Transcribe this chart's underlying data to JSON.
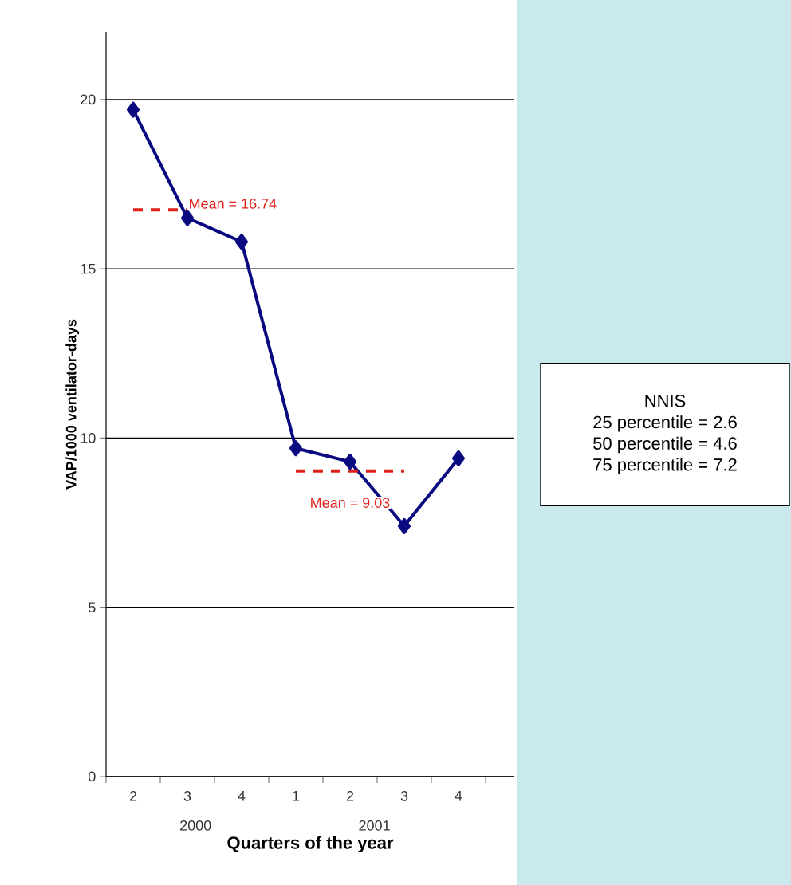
{
  "chart_data": {
    "type": "line",
    "xlabel": "Quarters of the year",
    "ylabel": "VAP/1000 ventilator-days",
    "categories": [
      "2",
      "3",
      "4",
      "1",
      "2",
      "3",
      "4"
    ],
    "series": [
      {
        "color": "#0a0a80",
        "values": [
          19.7,
          16.5,
          15.8,
          9.7,
          9.3,
          7.4,
          9.4
        ],
        "marker": "diamond",
        "line_style": "solid"
      },
      {
        "name": "Mean = 16.74",
        "color": "#e0201b",
        "values": [
          16.74,
          16.74,
          null,
          null,
          null,
          null,
          null
        ],
        "marker": "none",
        "line_style": "dashed"
      },
      {
        "name": "Mean = 9.03",
        "color": "#e0201b",
        "values": [
          null,
          null,
          null,
          9.03,
          9.03,
          9.03,
          null
        ],
        "marker": "none",
        "line_style": "dashed"
      }
    ],
    "ylim": [
      0,
      22
    ],
    "yticks": [
      0,
      5,
      10,
      15,
      20
    ],
    "grid": "y",
    "annotations": [
      "2000",
      "2001",
      "NNIS",
      "25 percentile = 2.6",
      "50 percentile = 4.6",
      "75 percentile = 7.2"
    ]
  }
}
